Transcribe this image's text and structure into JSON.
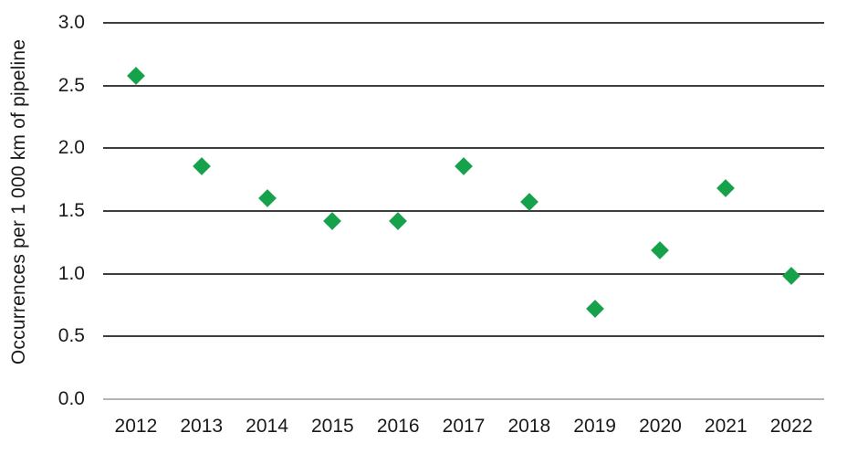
{
  "chart_data": {
    "type": "scatter",
    "title": "",
    "xlabel": "",
    "ylabel": "Occurrences per 1 000 km of pipeline",
    "categories": [
      "2012",
      "2013",
      "2014",
      "2015",
      "2016",
      "2017",
      "2018",
      "2019",
      "2020",
      "2021",
      "2022"
    ],
    "values": [
      2.58,
      1.86,
      1.6,
      1.42,
      1.42,
      1.86,
      1.57,
      0.72,
      1.19,
      1.68,
      0.98
    ],
    "ylim": [
      0.0,
      3.0
    ],
    "ytick_step": 0.5,
    "yticks": [
      "0.0",
      "0.5",
      "1.0",
      "1.5",
      "2.0",
      "2.5",
      "3.0"
    ],
    "grid": true,
    "legend": false,
    "marker": "diamond",
    "colors": {
      "marker": "#16a24a",
      "gridline": "#3e3e3e",
      "baseline": "#b4b4b4",
      "text": "#1a1a1a"
    }
  }
}
